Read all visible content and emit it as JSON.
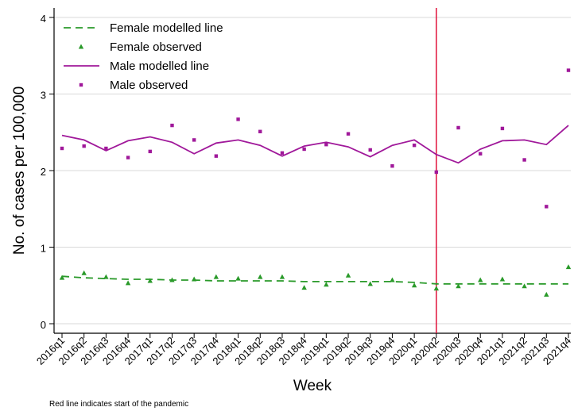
{
  "chart_data": {
    "type": "line",
    "title": "",
    "xlabel": "Week",
    "ylabel": "No. of cases per 100,000",
    "ylim": [
      0,
      4
    ],
    "yticks": [
      "0",
      "1",
      "2",
      "3",
      "4"
    ],
    "grid": "horizontal",
    "legend_position": "top-left",
    "categories": [
      "2016q1",
      "2016q2",
      "2016q3",
      "2016q4",
      "2017q1",
      "2017q2",
      "2017q3",
      "2017q4",
      "2018q1",
      "2018q2",
      "2018q3",
      "2018q4",
      "2019q1",
      "2019q2",
      "2019q3",
      "2019q4",
      "2020q1",
      "2020q2",
      "2020q3",
      "2020q4",
      "2021q1",
      "2021q2",
      "2021q3",
      "2021q4"
    ],
    "series": [
      {
        "name": "Female modelled line",
        "kind": "line",
        "style": "dashed",
        "color": "#2a9a2a",
        "values": [
          0.62,
          0.6,
          0.59,
          0.58,
          0.58,
          0.57,
          0.57,
          0.56,
          0.56,
          0.56,
          0.56,
          0.55,
          0.55,
          0.55,
          0.55,
          0.55,
          0.54,
          0.52,
          0.52,
          0.52,
          0.52,
          0.52,
          0.52,
          0.52
        ]
      },
      {
        "name": "Female observed",
        "kind": "scatter",
        "marker": "triangle",
        "color": "#2a9a2a",
        "values": [
          0.6,
          0.66,
          0.61,
          0.53,
          0.56,
          0.57,
          0.58,
          0.61,
          0.59,
          0.61,
          0.61,
          0.47,
          0.51,
          0.63,
          0.52,
          0.57,
          0.5,
          0.46,
          0.49,
          0.57,
          0.58,
          0.49,
          0.38,
          0.74
        ]
      },
      {
        "name": "Male modelled line",
        "kind": "line",
        "style": "solid",
        "color": "#a0189a",
        "values": [
          2.46,
          2.4,
          2.26,
          2.39,
          2.44,
          2.37,
          2.22,
          2.36,
          2.4,
          2.33,
          2.19,
          2.32,
          2.37,
          2.31,
          2.18,
          2.33,
          2.4,
          2.21,
          2.1,
          2.28,
          2.39,
          2.4,
          2.34,
          2.59
        ]
      },
      {
        "name": "Male observed",
        "kind": "scatter",
        "marker": "square",
        "color": "#a0189a",
        "values": [
          2.29,
          2.32,
          2.29,
          2.17,
          2.25,
          2.59,
          2.4,
          2.19,
          2.67,
          2.51,
          2.23,
          2.28,
          2.34,
          2.48,
          2.27,
          2.06,
          2.33,
          1.98,
          2.56,
          2.22,
          2.55,
          2.14,
          1.53,
          3.31
        ]
      }
    ],
    "reference_line": {
      "category": "2020q2",
      "color": "#e0103a"
    },
    "footnote": "Red line indicates start of the pandemic"
  }
}
